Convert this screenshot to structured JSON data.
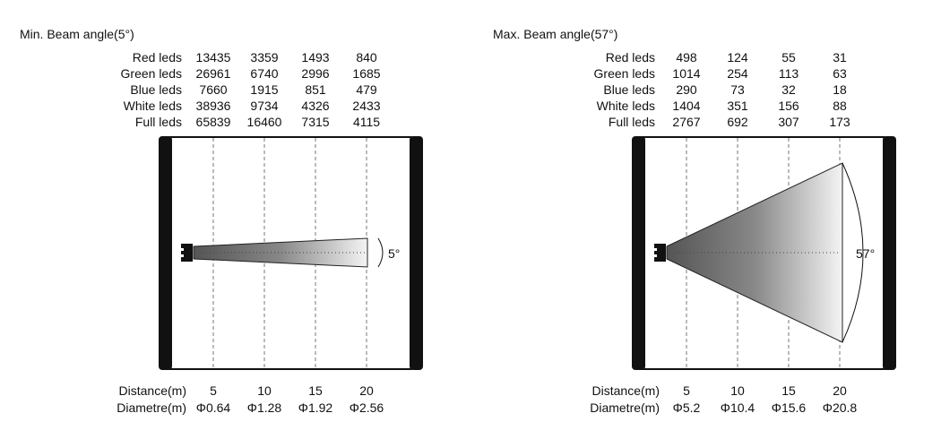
{
  "panels": [
    {
      "title": "Min.  Beam angle(5°)",
      "angle_label": "5°",
      "beam_angle_deg": 5,
      "rows": [
        {
          "label": "Red leds",
          "values": [
            "13435",
            "3359",
            "1493",
            "840"
          ]
        },
        {
          "label": "Green leds",
          "values": [
            "26961",
            "6740",
            "2996",
            "1685"
          ]
        },
        {
          "label": "Blue leds",
          "values": [
            "7660",
            "1915",
            "851",
            "479"
          ]
        },
        {
          "label": "White leds",
          "values": [
            "38936",
            "9734",
            "4326",
            "2433"
          ]
        },
        {
          "label": "Full leds",
          "values": [
            "65839",
            "16460",
            "7315",
            "4115"
          ]
        }
      ],
      "distance_label": "Distance(m)",
      "distances": [
        "5",
        "10",
        "15",
        "20"
      ],
      "diameter_label": "Diametre(m)",
      "diameters": [
        "Φ0.64",
        "Φ1.28",
        "Φ1.92",
        "Φ2.56"
      ]
    },
    {
      "title": "Max.  Beam angle(57°)",
      "angle_label": "57°",
      "beam_angle_deg": 57,
      "rows": [
        {
          "label": "Red leds",
          "values": [
            "498",
            "124",
            "55",
            "31"
          ]
        },
        {
          "label": "Green leds",
          "values": [
            "1014",
            "254",
            "113",
            "63"
          ]
        },
        {
          "label": "Blue leds",
          "values": [
            "290",
            "73",
            "32",
            "18"
          ]
        },
        {
          "label": "White leds",
          "values": [
            "1404",
            "351",
            "156",
            "88"
          ]
        },
        {
          "label": "Full leds",
          "values": [
            "2767",
            "692",
            "307",
            "173"
          ]
        }
      ],
      "distance_label": "Distance(m)",
      "distances": [
        "5",
        "10",
        "15",
        "20"
      ],
      "diameter_label": "Diametre(m)",
      "diameters": [
        "Φ5.2",
        "Φ10.4",
        "Φ15.6",
        "Φ20.8"
      ]
    }
  ]
}
